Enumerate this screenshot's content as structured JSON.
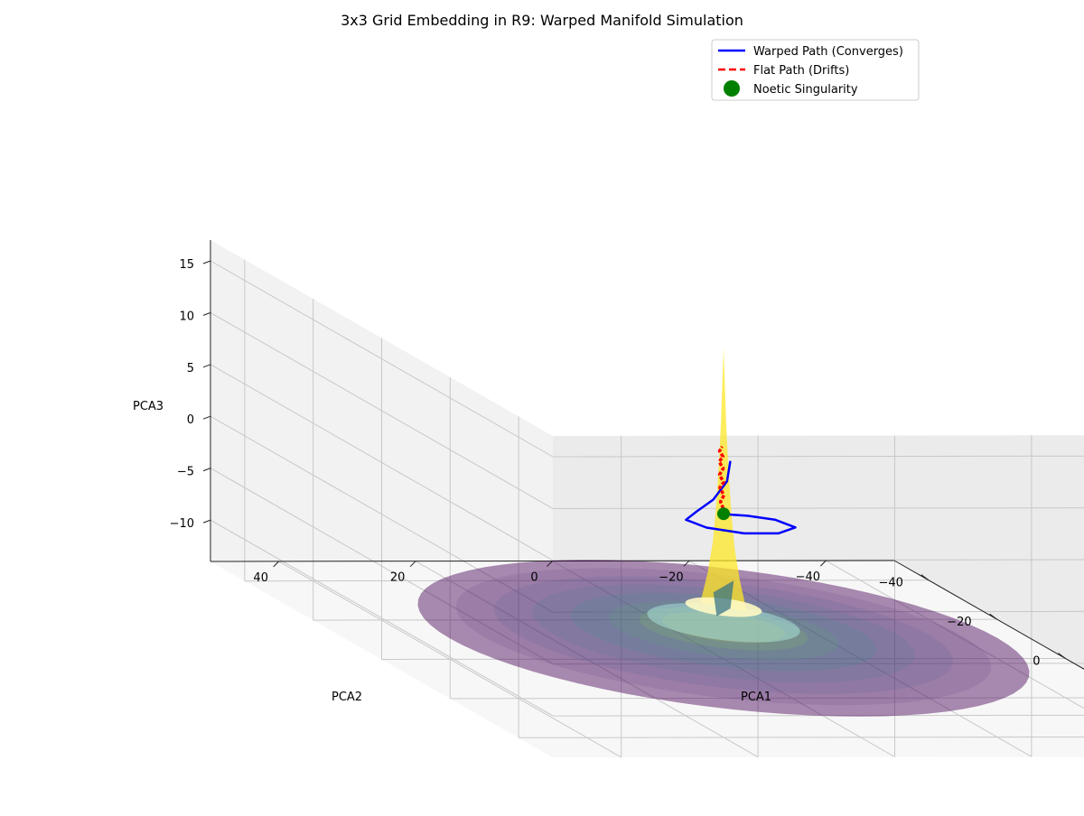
{
  "chart_data": {
    "type": "surface3d",
    "title": "3x3 Grid Embedding in R9: Warped Manifold Simulation",
    "xlabel": "PCA1",
    "ylabel": "PCA2",
    "zlabel": "PCA3",
    "xlim": [
      -50,
      50
    ],
    "ylim": [
      -50,
      50
    ],
    "zlim": [
      -14,
      17
    ],
    "xticks": [
      -40,
      -20,
      0,
      20,
      40
    ],
    "yticks": [
      -40,
      -20,
      0,
      20,
      40
    ],
    "zticks": [
      -10,
      -5,
      0,
      5,
      10,
      15
    ],
    "legend_position": "top-right",
    "legend": [
      {
        "label": "Warped Path (Converges)",
        "style": "solid-line",
        "color": "#0000ff"
      },
      {
        "label": "Flat Path (Drifts)",
        "style": "dashed-line",
        "color": "#ff0000"
      },
      {
        "label": "Noetic Singularity",
        "style": "marker",
        "color": "#008000"
      }
    ],
    "surface": {
      "shape": "funnel",
      "radius": 40,
      "rim_z": -12,
      "peak_z": 16,
      "colormap": "viridis",
      "alpha": 0.45
    },
    "singularity": {
      "x": 0,
      "y": 0,
      "z": 0,
      "color": "#008000"
    },
    "series": [
      {
        "name": "Warped Path (Converges)",
        "color": "#0000ff",
        "style": "solid",
        "points": [
          [
            -6,
            -10,
            3.2
          ],
          [
            -4,
            -7,
            1.8
          ],
          [
            0,
            -3,
            0.8
          ],
          [
            4,
            0,
            0.2
          ],
          [
            7,
            3,
            0
          ],
          [
            6,
            7,
            0
          ],
          [
            2,
            10,
            0
          ],
          [
            -3,
            10,
            0
          ],
          [
            -7,
            7,
            0
          ],
          [
            -6,
            3,
            0
          ],
          [
            -3,
            1,
            0
          ],
          [
            -1,
            0.5,
            0
          ],
          [
            0,
            0,
            0
          ]
        ]
      },
      {
        "name": "Flat Path (Drifts)",
        "color": "#ff0000",
        "style": "dashed",
        "points": [
          [
            0,
            0,
            0
          ],
          [
            0.3,
            0.5,
            0.6
          ],
          [
            0.8,
            0.7,
            1.3
          ],
          [
            0.5,
            1.1,
            2
          ],
          [
            1,
            0.9,
            2.7
          ],
          [
            0.7,
            1.4,
            3.3
          ],
          [
            1.2,
            1.2,
            4
          ],
          [
            0.9,
            1.7,
            4.7
          ],
          [
            1.4,
            1.5,
            5.3
          ],
          [
            1.1,
            2.0,
            5.9
          ],
          [
            1.5,
            1.8,
            6.4
          ],
          [
            1.3,
            2.2,
            6.9
          ]
        ]
      }
    ]
  }
}
